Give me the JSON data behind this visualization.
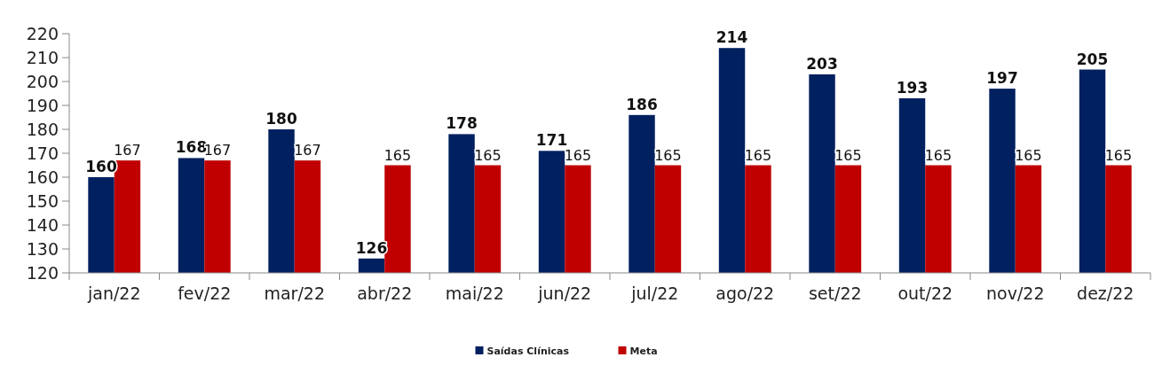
{
  "chart_data": {
    "type": "bar",
    "categories": [
      "jan/22",
      "fev/22",
      "mar/22",
      "abr/22",
      "mai/22",
      "jun/22",
      "jul/22",
      "ago/22",
      "set/22",
      "out/22",
      "nov/22",
      "dez/22"
    ],
    "series": [
      {
        "name": "Saídas Clínicas",
        "color": "#002060",
        "values": [
          160,
          168,
          180,
          126,
          178,
          171,
          186,
          214,
          203,
          193,
          197,
          205
        ]
      },
      {
        "name": "Meta",
        "color": "#c00000",
        "values": [
          167,
          167,
          167,
          165,
          165,
          165,
          165,
          165,
          165,
          165,
          165,
          165
        ]
      }
    ],
    "ylim": [
      120,
      220
    ],
    "yticks": [
      120,
      130,
      140,
      150,
      160,
      170,
      180,
      190,
      200,
      210,
      220
    ],
    "data_labels": true,
    "legend": "bottom",
    "grid": false
  }
}
